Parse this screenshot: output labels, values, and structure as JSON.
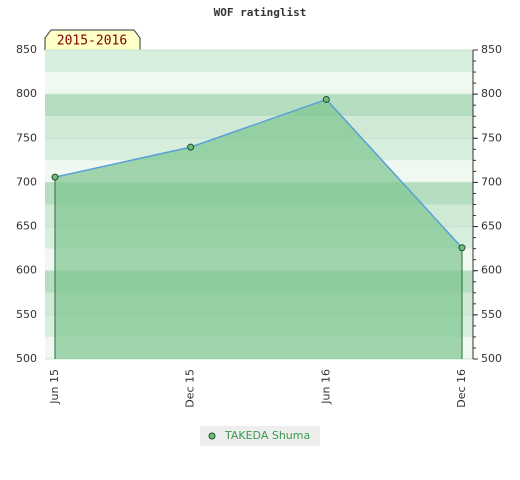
{
  "chart_data": {
    "type": "area",
    "title": "WOF ratinglist",
    "label": "2015-2016",
    "categories": [
      "Jun 15",
      "Dec 15",
      "Jun 16",
      "Dec 16"
    ],
    "series": [
      {
        "name": "TAKEDA Shuma",
        "color": "#5aa0d8",
        "fill": "#7cc48f",
        "values": [
          706,
          740,
          794,
          626
        ]
      }
    ],
    "ylim": [
      500,
      850
    ],
    "yticks": [
      500,
      550,
      600,
      650,
      700,
      750,
      800,
      850
    ],
    "grid": true
  }
}
